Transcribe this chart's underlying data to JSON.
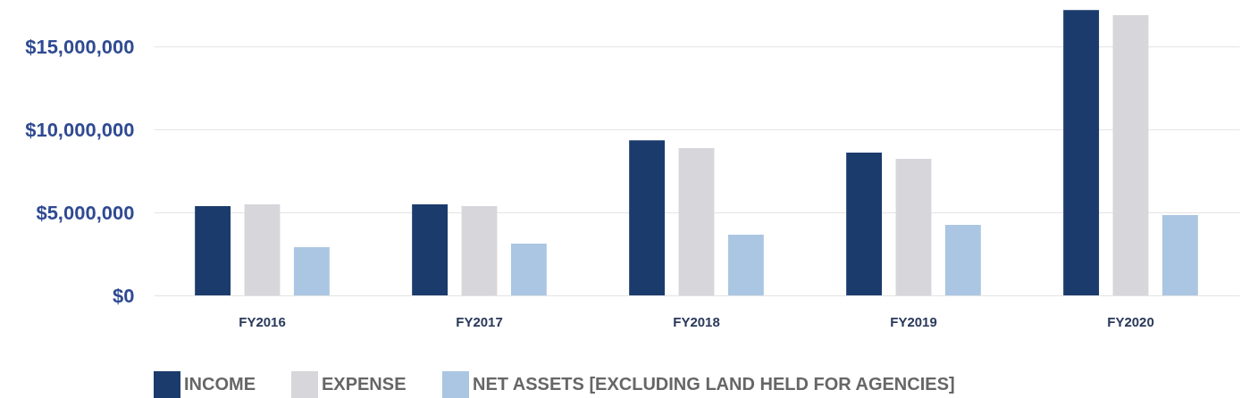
{
  "chart_data": {
    "type": "bar",
    "categories": [
      "FY2016",
      "FY2017",
      "FY2018",
      "FY2019",
      "FY2020"
    ],
    "series": [
      {
        "name": "INCOME",
        "color": "#1b3b6c",
        "values": [
          5380000,
          5480000,
          9350000,
          8600000,
          17200000
        ]
      },
      {
        "name": "EXPENSE",
        "color": "#d6d6db",
        "values": [
          5480000,
          5380000,
          8870000,
          8230000,
          16880000
        ]
      },
      {
        "name": "NET ASSETS [EXCLUDING LAND HELD FOR AGENCIES]",
        "color": "#abc6e2",
        "values": [
          2900000,
          3120000,
          3660000,
          4250000,
          4840000
        ]
      }
    ],
    "ylim": [
      0,
      17800000
    ],
    "yticks": [
      {
        "value": 0,
        "label": "$0"
      },
      {
        "value": 5000000,
        "label": "$5,000,000"
      },
      {
        "value": 10000000,
        "label": "$10,000,000"
      },
      {
        "value": 15000000,
        "label": "$15,000,000"
      }
    ],
    "grid": "y",
    "legend": "bottom"
  }
}
